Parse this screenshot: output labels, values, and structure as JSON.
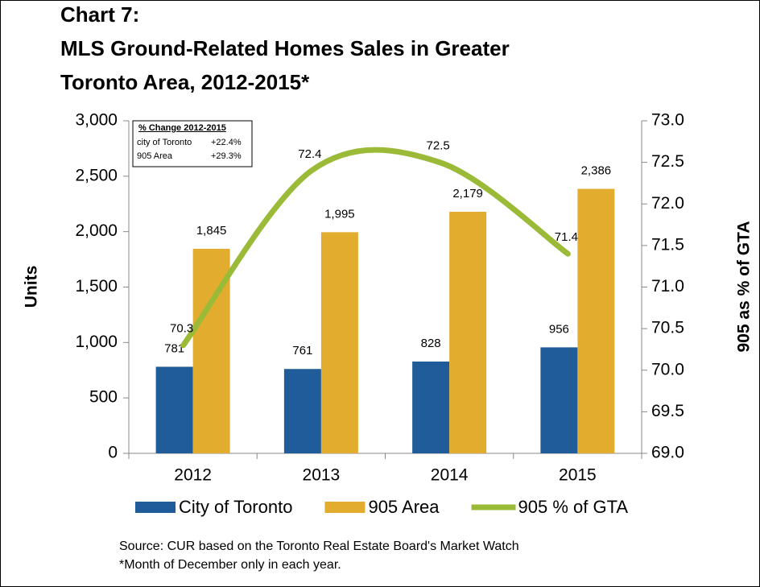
{
  "chart_data": {
    "type": "bar",
    "title": [
      "Chart 7:",
      "MLS Ground-Related Homes Sales in Greater",
      "Toronto Area, 2012-2015*"
    ],
    "categories": [
      "2012",
      "2013",
      "2014",
      "2015"
    ],
    "series": [
      {
        "name": "City of Toronto",
        "color": "#1f5c99",
        "values": [
          781,
          761,
          828,
          956
        ]
      },
      {
        "name": "905 Area",
        "color": "#e2ad2e",
        "values": [
          1845,
          1995,
          2179,
          2386
        ],
        "value_labels": [
          "1,845",
          "1,995",
          "2,179",
          "2,386"
        ]
      },
      {
        "name": "905 % of GTA",
        "type": "line",
        "axis": "y2",
        "color": "#9bbb38",
        "values": [
          70.3,
          72.4,
          72.5,
          71.4
        ]
      }
    ],
    "ylabel": "Units",
    "y2label": "905 as % of GTA",
    "ylim": [
      0,
      3000
    ],
    "yticks": [
      0,
      500,
      {
        "value": 1000,
        "label": "1,000"
      },
      {
        "value": 1500,
        "label": "1,500"
      },
      {
        "value": 2000,
        "label": "2,000"
      },
      {
        "value": 2500,
        "label": "2,500"
      },
      {
        "value": 3000,
        "label": "3,000"
      }
    ],
    "y2lim": [
      69,
      73
    ],
    "y2ticks": [
      {
        "value": 69,
        "label": "69.0"
      },
      69.5,
      {
        "value": 70,
        "label": "70.0"
      },
      70.5,
      {
        "value": 71,
        "label": "71.0"
      },
      71.5,
      {
        "value": 72,
        "label": "72.0"
      },
      72.5,
      {
        "value": 73,
        "label": "73.0"
      }
    ],
    "grid": false,
    "legend": "bottom",
    "annotation": {
      "title": "% Change 2012-2015",
      "rows": [
        [
          "city of Toronto",
          "+22.4%"
        ],
        [
          "905 Area",
          "+29.3%"
        ]
      ]
    },
    "source": "Source: CUR based on the Toronto Real Estate Board's Market Watch",
    "footnote": "*Month of December only in each year."
  }
}
